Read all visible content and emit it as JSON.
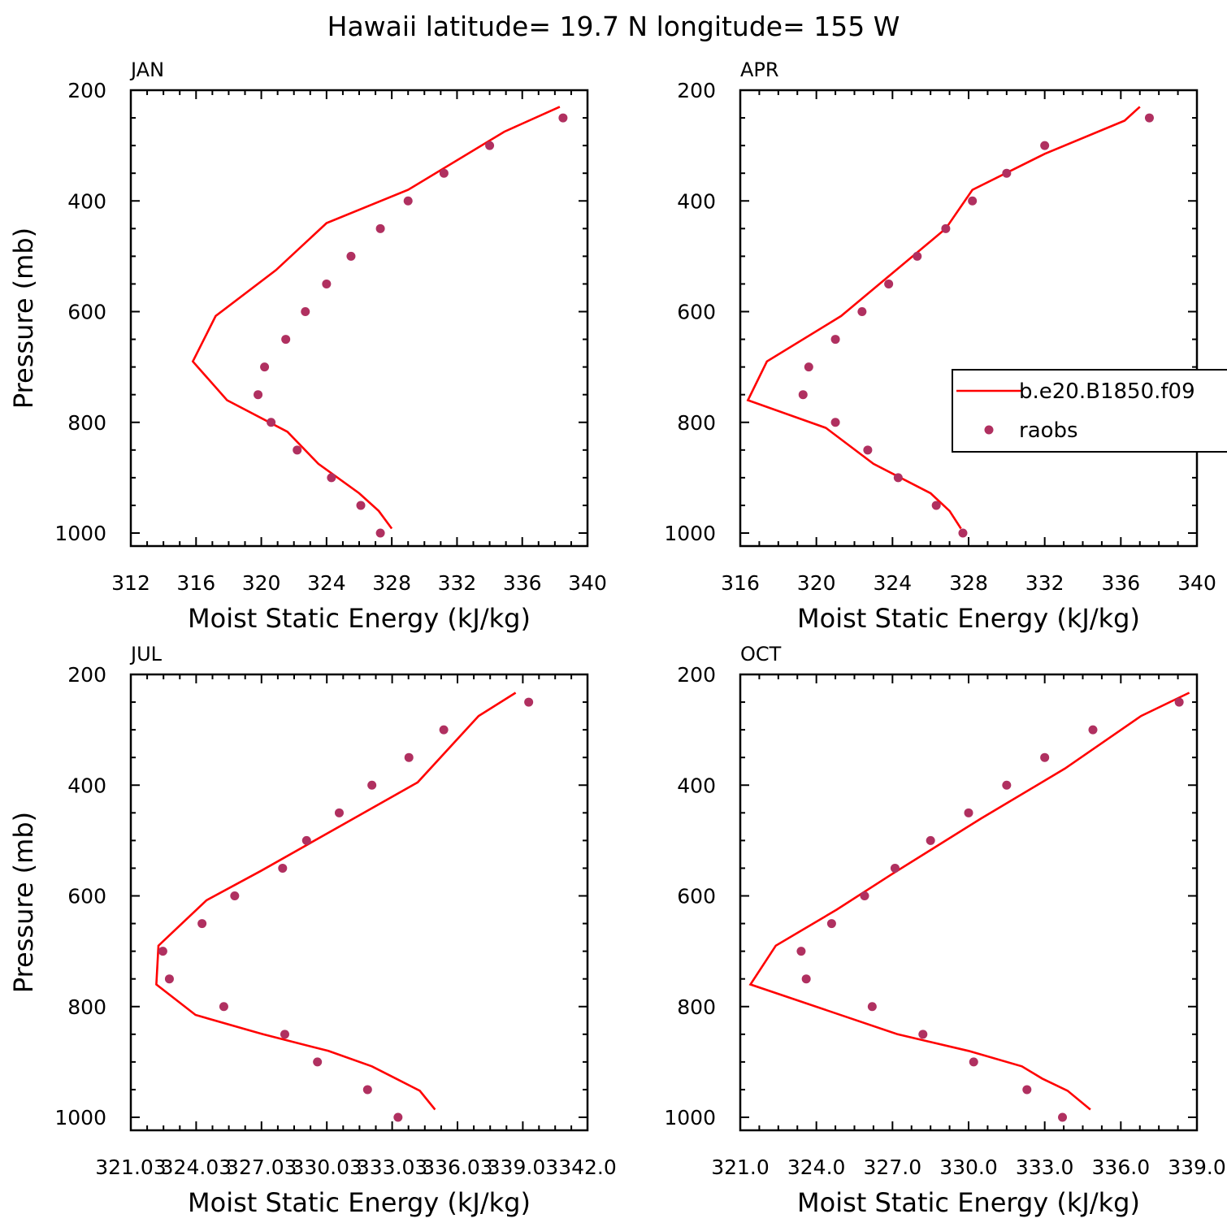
{
  "title": "Hawaii  latitude= 19.7 N longitude= 155 W",
  "legend": {
    "entries": [
      {
        "label": "b.e20.B1850.f09",
        "style": "line"
      },
      {
        "label": "raobs",
        "style": "marker"
      }
    ],
    "placement": "right side of APR panel, clipped at figure edge"
  },
  "colors": {
    "model_line": "#ff0000",
    "obs_marker": "#b03060"
  },
  "chart_data": [
    {
      "panel": "JAN",
      "type": "line",
      "label": "JAN",
      "xlabel": "Moist Static Energy (kJ/kg)",
      "ylabel": "Pressure (mb)",
      "xlim": [
        312,
        340
      ],
      "ylim": [
        1025,
        200
      ],
      "y_inverted": true,
      "xticks": [
        312,
        316,
        320,
        324,
        328,
        332,
        336,
        340
      ],
      "xtick_labels": [
        "312",
        "316",
        "320",
        "324",
        "328",
        "332",
        "336",
        "340"
      ],
      "yticks": [
        200,
        400,
        600,
        800,
        1000
      ],
      "ytick_labels": [
        "200",
        "400",
        "600",
        "800",
        "1000"
      ],
      "series": [
        {
          "name": "b.e20.B1850.f09",
          "kind": "line",
          "x": [
            328.0,
            327.2,
            326.0,
            323.5,
            321.6,
            317.9,
            315.8,
            317.2,
            320.9,
            324.0,
            329.0,
            334.9,
            338.3
          ],
          "y": [
            992,
            960,
            928,
            875,
            817,
            760,
            690,
            608,
            525,
            440,
            380,
            275,
            230
          ]
        },
        {
          "name": "raobs",
          "kind": "scatter",
          "x": [
            327.3,
            326.1,
            324.3,
            322.2,
            320.6,
            319.8,
            320.2,
            321.5,
            322.7,
            324.0,
            325.5,
            327.3,
            329.0,
            331.2,
            334.0,
            338.5
          ],
          "y": [
            1000,
            950,
            900,
            850,
            800,
            750,
            700,
            650,
            600,
            550,
            500,
            450,
            400,
            350,
            300,
            250
          ]
        }
      ]
    },
    {
      "panel": "APR",
      "type": "line",
      "label": "APR",
      "xlabel": "Moist Static Energy (kJ/kg)",
      "ylabel": "",
      "xlim": [
        316,
        340
      ],
      "ylim": [
        1025,
        200
      ],
      "y_inverted": true,
      "xticks": [
        316,
        320,
        324,
        328,
        332,
        336,
        340
      ],
      "xtick_labels": [
        "316",
        "320",
        "324",
        "328",
        "332",
        "336",
        "340"
      ],
      "yticks": [
        200,
        400,
        600,
        800,
        1000
      ],
      "ytick_labels": [
        "200",
        "400",
        "600",
        "800",
        "1000"
      ],
      "series": [
        {
          "name": "b.e20.B1850.f09",
          "kind": "line",
          "x": [
            327.6,
            327.0,
            326.0,
            323.0,
            320.5,
            316.4,
            317.4,
            321.3,
            326.8,
            328.2,
            332.0,
            336.2,
            337.0
          ],
          "y": [
            992,
            960,
            928,
            875,
            810,
            760,
            690,
            608,
            450,
            380,
            315,
            255,
            230
          ]
        },
        {
          "name": "raobs",
          "kind": "scatter",
          "x": [
            327.7,
            326.3,
            324.3,
            322.7,
            321.0,
            319.3,
            319.6,
            321.0,
            322.4,
            323.8,
            325.3,
            326.8,
            328.2,
            330.0,
            332.0,
            337.5
          ],
          "y": [
            1000,
            950,
            900,
            850,
            800,
            750,
            700,
            650,
            600,
            550,
            500,
            450,
            400,
            350,
            300,
            250
          ]
        }
      ]
    },
    {
      "panel": "JUL",
      "type": "line",
      "label": "JUL",
      "xlabel": "Moist Static Energy (kJ/kg)",
      "ylabel": "Pressure (mb)",
      "xlim": [
        321.03,
        342.0
      ],
      "ylim": [
        1025,
        200
      ],
      "y_inverted": true,
      "xticks": [
        321.03,
        324.03,
        327.03,
        330.03,
        333.03,
        336.03,
        339.03,
        342.0
      ],
      "xtick_labels": [
        "321.03",
        "324.03",
        "327.03",
        "330.03",
        "333.03",
        "336.03",
        "339.03",
        "342.0"
      ],
      "yticks": [
        200,
        400,
        600,
        800,
        1000
      ],
      "ytick_labels": [
        "200",
        "400",
        "600",
        "800",
        "1000"
      ],
      "series": [
        {
          "name": "b.e20.B1850.f09",
          "kind": "line",
          "x": [
            335.0,
            334.3,
            333.2,
            332.1,
            330.1,
            327.1,
            324.0,
            322.2,
            322.3,
            324.5,
            327.0,
            334.2,
            337.0,
            338.7
          ],
          "y": [
            986,
            952,
            930,
            908,
            880,
            850,
            815,
            760,
            690,
            608,
            555,
            395,
            275,
            233
          ]
        },
        {
          "name": "raobs",
          "kind": "scatter",
          "x": [
            333.3,
            331.9,
            329.6,
            328.1,
            325.3,
            322.8,
            322.5,
            324.3,
            325.8,
            328.0,
            329.1,
            330.6,
            332.1,
            333.8,
            335.4,
            339.3
          ],
          "y": [
            1000,
            950,
            900,
            850,
            800,
            750,
            700,
            650,
            600,
            550,
            500,
            450,
            400,
            350,
            300,
            250
          ]
        }
      ]
    },
    {
      "panel": "OCT",
      "type": "line",
      "label": "OCT",
      "xlabel": "Moist Static Energy (kJ/kg)",
      "ylabel": "",
      "xlim": [
        321.0,
        339.0
      ],
      "ylim": [
        1025,
        200
      ],
      "y_inverted": true,
      "xticks": [
        321.0,
        324.0,
        327.0,
        330.0,
        333.0,
        336.0,
        339.0
      ],
      "xtick_labels": [
        "321.0",
        "324.0",
        "327.0",
        "330.0",
        "333.0",
        "336.0",
        "339.0"
      ],
      "yticks": [
        200,
        400,
        600,
        800,
        1000
      ],
      "ytick_labels": [
        "200",
        "400",
        "600",
        "800",
        "1000"
      ],
      "series": [
        {
          "name": "b.e20.B1850.f09",
          "kind": "line",
          "x": [
            334.8,
            333.9,
            332.9,
            332.1,
            330.0,
            327.2,
            321.4,
            322.4,
            324.8,
            327.0,
            330.5,
            333.8,
            336.8,
            338.7
          ],
          "y": [
            986,
            952,
            930,
            908,
            880,
            850,
            760,
            690,
            625,
            560,
            460,
            370,
            275,
            233
          ]
        },
        {
          "name": "raobs",
          "kind": "scatter",
          "x": [
            333.7,
            332.3,
            330.2,
            328.2,
            326.2,
            323.6,
            323.4,
            324.6,
            325.9,
            327.1,
            328.5,
            330.0,
            331.5,
            333.0,
            334.9,
            338.3
          ],
          "y": [
            1000,
            950,
            900,
            850,
            800,
            750,
            700,
            650,
            600,
            550,
            500,
            450,
            400,
            350,
            300,
            250
          ]
        }
      ]
    }
  ]
}
